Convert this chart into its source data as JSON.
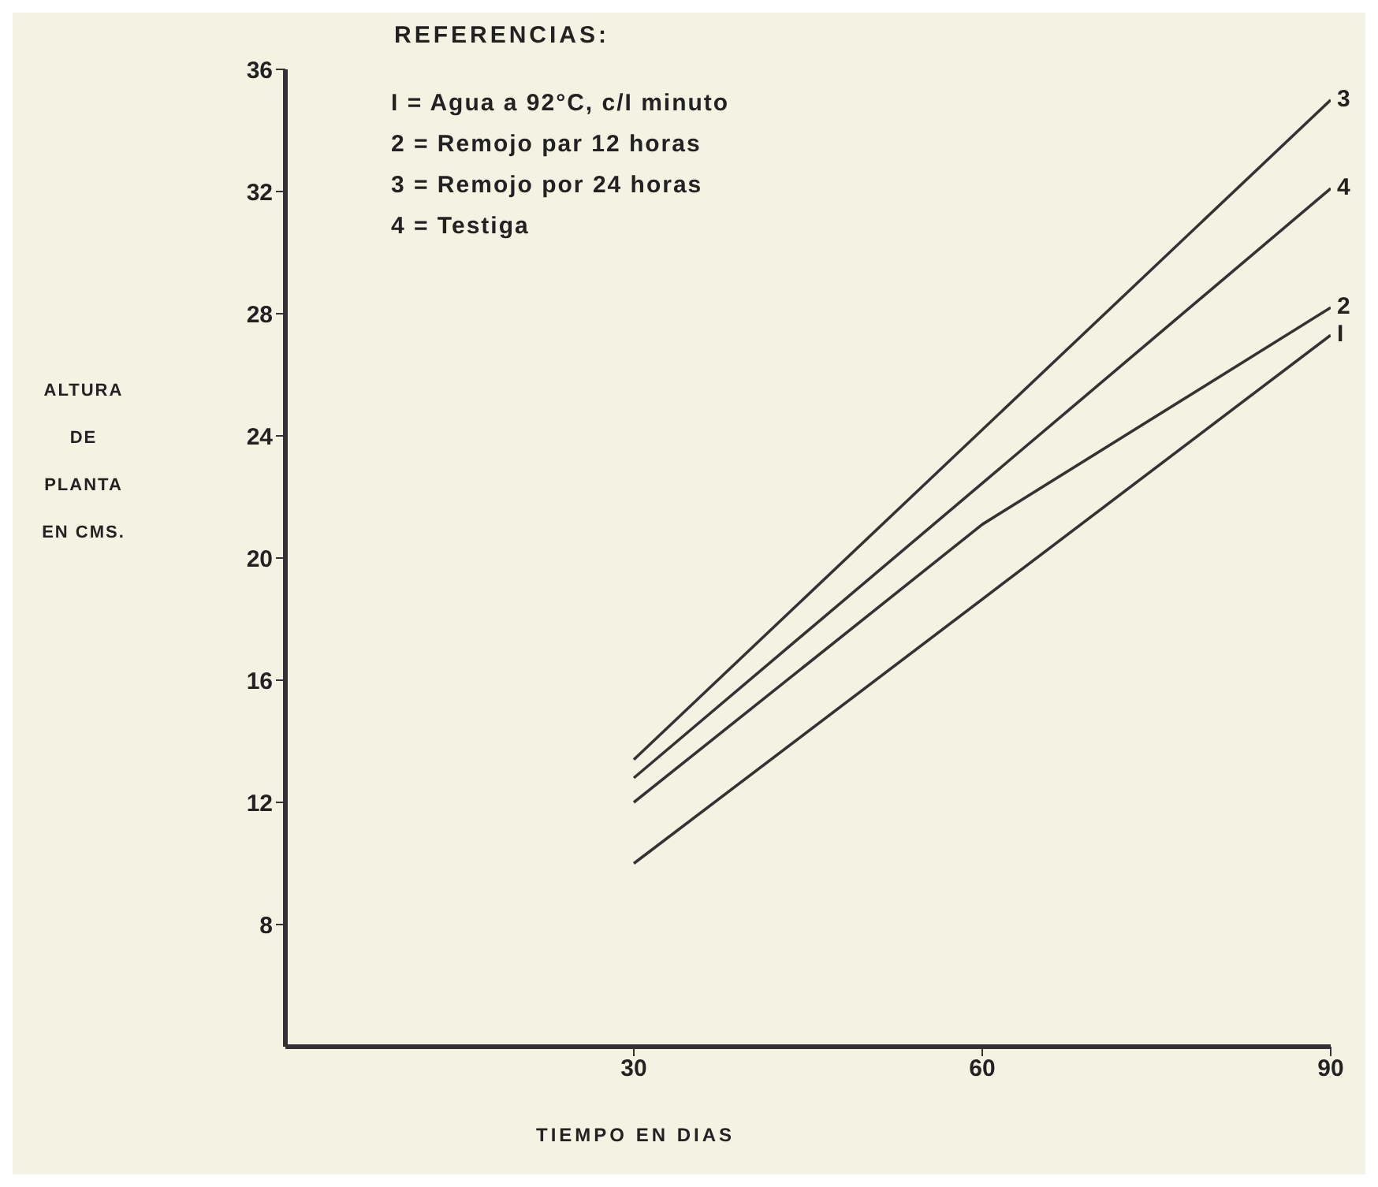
{
  "chart_data": {
    "type": "line",
    "xlabel": "TIEMPO EN DIAS",
    "ylabel": "ALTURA DE PLANTA EN CMS.",
    "legend_title": "REFERENCIAS:",
    "annotations": [
      "I = Agua a 92°C, c/I minuto",
      "2 = Remojo par 12 horas",
      "3 = Remojo por 24 horas",
      "4 = Testiga"
    ],
    "xlim": [
      0,
      90
    ],
    "xticks": [
      30,
      60,
      90
    ],
    "ylim": [
      4,
      36
    ],
    "yticks": [
      8,
      12,
      16,
      20,
      24,
      28,
      32,
      36
    ],
    "grid": false,
    "legend": false,
    "marker": "none",
    "line_style": "solid",
    "series": [
      {
        "name": "3",
        "color": "#333333",
        "x": [
          30,
          90
        ],
        "values": [
          13.4,
          35.0
        ]
      },
      {
        "name": "4",
        "color": "#333333",
        "x": [
          30,
          90
        ],
        "values": [
          12.8,
          32.1
        ]
      },
      {
        "name": "2",
        "color": "#333333",
        "x": [
          30,
          60,
          90
        ],
        "values": [
          12.0,
          21.1,
          28.2
        ]
      },
      {
        "name": "I",
        "color": "#333333",
        "x": [
          30,
          90
        ],
        "values": [
          10.0,
          27.3
        ]
      }
    ]
  }
}
